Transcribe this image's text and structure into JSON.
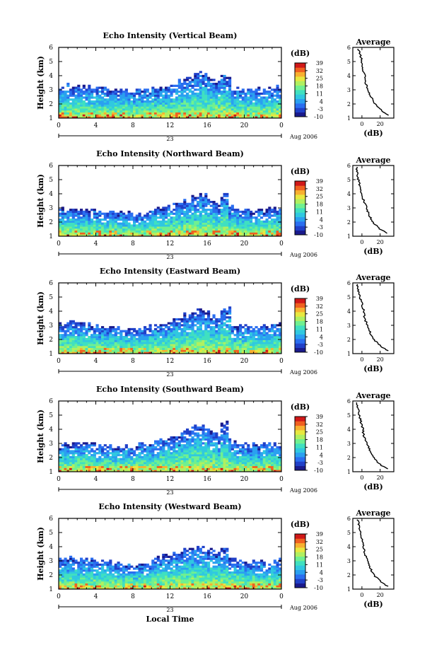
{
  "chart_data": [
    {
      "type": "heatmap",
      "title": "Echo Intensity (Vertical Beam)",
      "ylabel": "Height (km)",
      "xlim": [
        0,
        24
      ],
      "ylim": [
        1,
        6
      ],
      "x_ticks": [
        "0",
        "4",
        "8",
        "12",
        "16",
        "20",
        "0"
      ],
      "y_ticks": [
        "1",
        "2",
        "3",
        "4",
        "5",
        "6"
      ],
      "day_label": "23",
      "date_label": "Aug 2006",
      "colorbar_unit": "(dB)",
      "colorbar_ticks": [
        "39",
        "32",
        "25",
        "18",
        "11",
        "4",
        "-3",
        "-10"
      ],
      "clim": [
        -10,
        39
      ],
      "top_km": [
        3.3,
        3.3,
        3.2,
        3.2,
        3.1,
        3.1,
        3.0,
        3.0,
        3.1,
        3.3,
        3.5,
        3.8,
        4.2,
        3.8,
        3.4,
        3.1,
        3.1,
        3.0,
        3.2,
        3.3
      ],
      "peak": {
        "x": 18.0,
        "y": 4.0
      },
      "profile": {
        "title": "Average",
        "xlabel": "(dB)",
        "x_ticks": [
          "0",
          "20"
        ],
        "xlim": [
          -10,
          35
        ],
        "y_ticks": [
          "1",
          "2",
          "3",
          "4",
          "5",
          "6"
        ],
        "height_km": [
          1.2,
          1.5,
          2.0,
          2.5,
          3.0,
          3.5,
          4.0,
          4.5,
          5.0,
          5.5,
          5.9
        ],
        "db": [
          30,
          22,
          14,
          10,
          7,
          4,
          3,
          1,
          0,
          -2,
          -4
        ]
      }
    },
    {
      "type": "heatmap",
      "title": "Echo Intensity (Northward Beam)",
      "ylabel": "Height (km)",
      "xlim": [
        0,
        24
      ],
      "ylim": [
        1,
        6
      ],
      "x_ticks": [
        "0",
        "4",
        "8",
        "12",
        "16",
        "20",
        "0"
      ],
      "y_ticks": [
        "1",
        "2",
        "3",
        "4",
        "5",
        "6"
      ],
      "day_label": "23",
      "date_label": "Aug 2006",
      "colorbar_unit": "(dB)",
      "colorbar_ticks": [
        "39",
        "32",
        "25",
        "18",
        "11",
        "4",
        "-3",
        "-10"
      ],
      "clim": [
        -10,
        39
      ],
      "top_km": [
        2.9,
        2.9,
        2.9,
        2.8,
        2.7,
        2.7,
        2.6,
        2.6,
        2.8,
        3.0,
        3.3,
        3.6,
        4.0,
        3.7,
        3.3,
        3.0,
        2.9,
        2.8,
        2.9,
        3.0
      ],
      "peak": {
        "x": 17.8,
        "y": 4.0
      },
      "profile": {
        "title": "Average",
        "xlabel": "(dB)",
        "x_ticks": [
          "0",
          "20"
        ],
        "xlim": [
          -10,
          35
        ],
        "y_ticks": [
          "1",
          "2",
          "3",
          "4",
          "5",
          "6"
        ],
        "height_km": [
          1.2,
          1.5,
          2.0,
          2.5,
          3.0,
          3.5,
          4.0,
          4.5,
          5.0,
          5.5,
          5.9
        ],
        "db": [
          28,
          20,
          12,
          8,
          5,
          2,
          0,
          -2,
          -4,
          -5,
          -6
        ]
      }
    },
    {
      "type": "heatmap",
      "title": "Echo Intensity (Eastward Beam)",
      "ylabel": "Height (km)",
      "xlim": [
        0,
        24
      ],
      "ylim": [
        1,
        6
      ],
      "x_ticks": [
        "0",
        "4",
        "8",
        "12",
        "16",
        "20",
        "0"
      ],
      "y_ticks": [
        "1",
        "2",
        "3",
        "4",
        "5",
        "6"
      ],
      "day_label": "23",
      "date_label": "Aug 2006",
      "colorbar_unit": "(dB)",
      "colorbar_ticks": [
        "39",
        "32",
        "25",
        "18",
        "11",
        "4",
        "-3",
        "-10"
      ],
      "clim": [
        -10,
        39
      ],
      "top_km": [
        3.1,
        3.2,
        3.1,
        3.0,
        2.9,
        2.9,
        2.8,
        2.8,
        3.0,
        3.2,
        3.5,
        3.8,
        4.2,
        3.8,
        3.4,
        3.1,
        3.0,
        2.9,
        3.0,
        3.1
      ],
      "peak": {
        "x": 18.0,
        "y": 4.2
      },
      "profile": {
        "title": "Average",
        "xlabel": "(dB)",
        "x_ticks": [
          "0",
          "20"
        ],
        "xlim": [
          -10,
          35
        ],
        "y_ticks": [
          "1",
          "2",
          "3",
          "4",
          "5",
          "6"
        ],
        "height_km": [
          1.2,
          1.5,
          2.0,
          2.5,
          3.0,
          3.5,
          4.0,
          4.5,
          5.0,
          5.5,
          5.9
        ],
        "db": [
          29,
          21,
          13,
          9,
          6,
          3,
          2,
          0,
          -2,
          -4,
          -5
        ]
      }
    },
    {
      "type": "heatmap",
      "title": "Echo Intensity (Southward Beam)",
      "ylabel": "Height (km)",
      "xlim": [
        0,
        24
      ],
      "ylim": [
        1,
        6
      ],
      "x_ticks": [
        "0",
        "4",
        "8",
        "12",
        "16",
        "20",
        "0"
      ],
      "y_ticks": [
        "1",
        "2",
        "3",
        "4",
        "5",
        "6"
      ],
      "day_label": "23",
      "date_label": "Aug 2006",
      "colorbar_unit": "(dB)",
      "colorbar_ticks": [
        "39",
        "32",
        "25",
        "18",
        "11",
        "4",
        "-3",
        "-10"
      ],
      "clim": [
        -10,
        39
      ],
      "top_km": [
        2.8,
        2.9,
        3.0,
        3.0,
        2.9,
        2.9,
        2.8,
        2.9,
        3.1,
        3.4,
        3.6,
        3.9,
        4.4,
        3.8,
        3.4,
        3.1,
        3.0,
        2.9,
        3.0,
        3.0
      ],
      "peak": {
        "x": 17.9,
        "y": 4.4
      },
      "profile": {
        "title": "Average",
        "xlabel": "(dB)",
        "x_ticks": [
          "0",
          "20"
        ],
        "xlim": [
          -10,
          35
        ],
        "y_ticks": [
          "1",
          "2",
          "3",
          "4",
          "5",
          "6"
        ],
        "height_km": [
          1.2,
          1.5,
          2.0,
          2.5,
          3.0,
          3.5,
          4.0,
          4.5,
          5.0,
          5.5,
          5.9
        ],
        "db": [
          28,
          20,
          13,
          9,
          5,
          2,
          1,
          -1,
          -3,
          -4,
          -6
        ]
      }
    },
    {
      "type": "heatmap",
      "title": "Echo Intensity (Westward Beam)",
      "ylabel": "Height (km)",
      "xlim": [
        0,
        24
      ],
      "ylim": [
        1,
        6
      ],
      "x_ticks": [
        "0",
        "4",
        "8",
        "12",
        "16",
        "20",
        "0"
      ],
      "y_ticks": [
        "1",
        "2",
        "3",
        "4",
        "5",
        "6"
      ],
      "day_label": "23",
      "date_label": "Aug 2006",
      "colorbar_unit": "(dB)",
      "colorbar_ticks": [
        "39",
        "32",
        "25",
        "18",
        "11",
        "4",
        "-3",
        "-10"
      ],
      "clim": [
        -10,
        39
      ],
      "top_km": [
        3.2,
        3.2,
        3.1,
        3.0,
        2.9,
        2.9,
        2.8,
        2.8,
        3.0,
        3.3,
        3.6,
        3.9,
        4.0,
        3.8,
        3.4,
        3.1,
        3.0,
        2.9,
        3.0,
        3.1
      ],
      "peak": {
        "x": 17.8,
        "y": 4.0
      },
      "profile": {
        "title": "Average",
        "xlabel": "(dB)",
        "x_ticks": [
          "0",
          "20"
        ],
        "xlim": [
          -10,
          35
        ],
        "y_ticks": [
          "1",
          "2",
          "3",
          "4",
          "5",
          "6"
        ],
        "height_km": [
          1.2,
          1.5,
          2.0,
          2.5,
          3.0,
          3.5,
          4.0,
          4.5,
          5.0,
          5.5,
          5.9
        ],
        "db": [
          28,
          21,
          13,
          9,
          6,
          3,
          2,
          0,
          -2,
          -3,
          -5
        ]
      }
    }
  ],
  "xlabel": "Local Time",
  "colormap": [
    "#1a1a8c",
    "#2040c8",
    "#2a6ef0",
    "#2aa0f0",
    "#30c8e0",
    "#40e0c0",
    "#70f090",
    "#b0f060",
    "#e8e840",
    "#f8b030",
    "#f06020",
    "#d01818"
  ]
}
